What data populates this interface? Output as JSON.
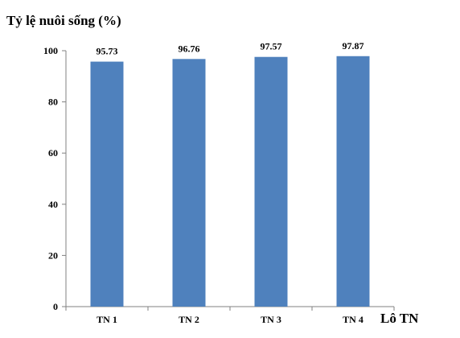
{
  "chart_data": {
    "type": "bar",
    "ylabel": "Tỷ lệ nuôi sống (%)",
    "xlabel": "Lô TN",
    "categories": [
      "TN 1",
      "TN 2",
      "TN 3",
      "TN 4"
    ],
    "values": [
      95.73,
      96.76,
      97.57,
      97.87
    ],
    "data_labels": [
      "95.73",
      "96.76",
      "97.57",
      "97.87"
    ],
    "ylim": [
      0,
      100
    ],
    "yticks": [
      0,
      20,
      40,
      60,
      80,
      100
    ],
    "grid": false,
    "legend": "none",
    "bar_color": "#4F81BD"
  }
}
